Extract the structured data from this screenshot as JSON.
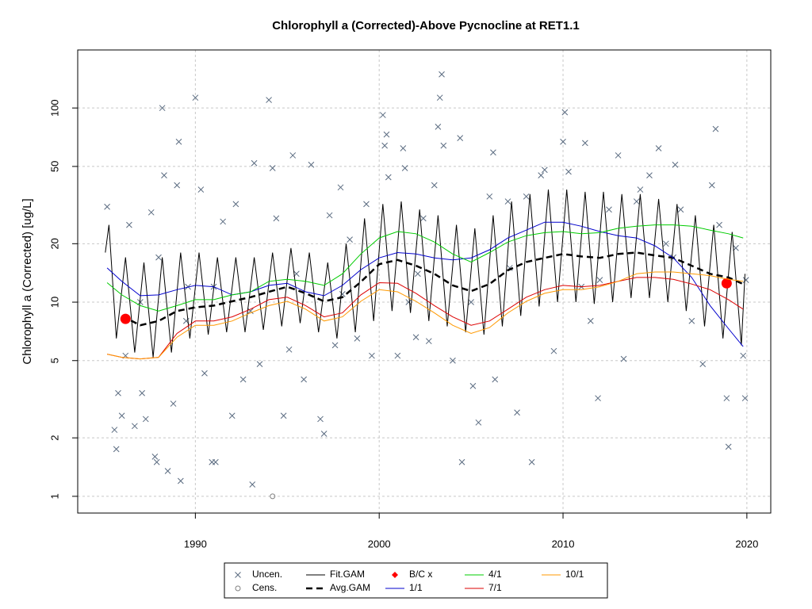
{
  "chart_data": {
    "type": "line",
    "title": "Chlorophyll a (Corrected)-Above Pycnocline at RET1.1",
    "ylabel": "Chlorophyll a (Corrected) [ug/L]",
    "ylog": true,
    "grid": true,
    "legend": "bottom",
    "xlim": [
      1983.6,
      2021.3
    ],
    "ylim": [
      0.82,
      199
    ],
    "xticks": [
      1990,
      2000,
      2010,
      2020
    ],
    "yticks": [
      1,
      2,
      5,
      10,
      20,
      50,
      100
    ],
    "series": [
      {
        "name": "Uncen.",
        "color": "#5a6b80",
        "kind": "points",
        "marker": "x",
        "x": [
          1985.2,
          1985.6,
          1985.7,
          1985.8,
          1986.0,
          1986.2,
          1986.4,
          1986.7,
          1987.0,
          1987.1,
          1987.3,
          1987.6,
          1987.8,
          1987.9,
          1988.0,
          1988.2,
          1988.3,
          1988.5,
          1988.8,
          1989.0,
          1989.1,
          1989.2,
          1989.5,
          1989.6,
          1990.0,
          1990.3,
          1990.5,
          1990.9,
          1991.0,
          1991.1,
          1991.5,
          1992.0,
          1992.2,
          1992.6,
          1993.0,
          1993.1,
          1993.2,
          1993.5,
          1994.0,
          1994.2,
          1994.4,
          1994.8,
          1995.1,
          1995.3,
          1995.5,
          1995.9,
          1996.3,
          1996.8,
          1997.0,
          1997.3,
          1997.6,
          1997.9,
          1998.0,
          1998.4,
          1998.8,
          1999.3,
          1999.6,
          2000.2,
          2000.3,
          2000.4,
          2000.5,
          2001.0,
          2001.3,
          2001.4,
          2001.6,
          2002.0,
          2002.1,
          2002.4,
          2002.7,
          2003.0,
          2003.2,
          2003.3,
          2003.4,
          2003.5,
          2004.0,
          2004.4,
          2004.5,
          2005.0,
          2005.1,
          2005.4,
          2006.0,
          2006.2,
          2006.3,
          2007.0,
          2007.1,
          2007.5,
          2008.0,
          2008.3,
          2008.8,
          2009.0,
          2009.5,
          2010.0,
          2010.1,
          2010.3,
          2011.0,
          2011.2,
          2011.5,
          2011.9,
          2012.0,
          2012.5,
          2013.0,
          2013.3,
          2014.0,
          2014.2,
          2014.7,
          2015.2,
          2015.6,
          2016.0,
          2016.1,
          2016.4,
          2017.0,
          2017.6,
          2018.1,
          2018.3,
          2018.5,
          2018.9,
          2019.0,
          2019.4,
          2019.8,
          2019.9,
          2019.95
        ],
        "values": [
          31,
          2.2,
          1.75,
          3.4,
          2.6,
          5.3,
          25,
          2.3,
          10,
          3.4,
          2.5,
          29,
          1.6,
          1.5,
          17,
          100,
          45,
          1.35,
          3.0,
          40,
          67,
          1.2,
          8,
          12,
          113,
          38,
          4.3,
          1.5,
          12,
          1.5,
          26,
          2.6,
          32,
          4.0,
          9,
          1.15,
          52,
          4.8,
          110,
          49,
          27,
          2.6,
          5.7,
          57,
          14,
          4.0,
          51,
          2.5,
          2.1,
          28,
          6.0,
          39,
          11,
          21,
          6.5,
          32,
          5.3,
          92,
          64,
          73,
          44,
          5.3,
          62,
          49,
          10,
          6.6,
          14,
          27,
          6.3,
          40,
          80,
          113,
          149,
          64,
          5.0,
          70,
          1.5,
          10,
          3.7,
          2.4,
          35,
          59,
          4.0,
          33,
          15,
          2.7,
          35,
          1.5,
          45,
          48,
          5.6,
          67,
          95,
          47,
          12,
          66,
          8,
          3.2,
          13,
          30,
          57,
          5.1,
          33,
          38,
          45,
          62,
          20,
          17,
          51,
          30,
          8.0,
          4.8,
          40,
          78,
          25,
          3.2,
          1.8,
          19,
          5.3,
          3.2,
          13
        ]
      },
      {
        "name": "Cens.",
        "color": "#808080",
        "kind": "points",
        "marker": "o",
        "x": [
          1994.2
        ],
        "values": [
          1.0
        ]
      },
      {
        "name": "Fit.GAM",
        "color": "#000000",
        "kind": "line",
        "width": 1,
        "x": [
          1985.1,
          1985.3,
          1985.7,
          1986.2,
          1986.7,
          1987.2,
          1987.7,
          1988.2,
          1988.7,
          1989.2,
          1989.7,
          1990.2,
          1990.7,
          1991.2,
          1991.7,
          1992.2,
          1992.7,
          1993.2,
          1993.7,
          1994.2,
          1994.7,
          1995.2,
          1995.7,
          1996.2,
          1996.7,
          1997.2,
          1997.7,
          1998.2,
          1998.7,
          1999.2,
          1999.7,
          2000.2,
          2000.7,
          2001.2,
          2001.7,
          2002.2,
          2002.7,
          2003.2,
          2003.7,
          2004.2,
          2004.7,
          2005.2,
          2005.7,
          2006.2,
          2006.7,
          2007.2,
          2007.7,
          2008.2,
          2008.7,
          2009.2,
          2009.7,
          2010.2,
          2010.7,
          2011.2,
          2011.7,
          2012.2,
          2012.7,
          2013.2,
          2013.7,
          2014.2,
          2014.7,
          2015.2,
          2015.7,
          2016.2,
          2016.7,
          2017.2,
          2017.7,
          2018.2,
          2018.7,
          2019.2,
          2019.7,
          2019.9
        ],
        "values": [
          18,
          25,
          6.5,
          17,
          5.5,
          16,
          5.2,
          17,
          5.5,
          18,
          6.5,
          18,
          6.8,
          17,
          7.0,
          17,
          7.0,
          17,
          7.2,
          18,
          7.5,
          19,
          7.8,
          18,
          7.0,
          16,
          6.5,
          20,
          7.0,
          27,
          8.0,
          32,
          9.0,
          33,
          8.8,
          30,
          8.0,
          28,
          7.5,
          25,
          7.0,
          24,
          6.8,
          28,
          7.5,
          33,
          8.5,
          36,
          9.5,
          38,
          10.0,
          38,
          10.0,
          37,
          9.8,
          37,
          10.0,
          36,
          10.5,
          36,
          10.5,
          34,
          10.0,
          32,
          9.0,
          28,
          7.5,
          25,
          6.5,
          23,
          6.0,
          14
        ]
      },
      {
        "name": "Avg.GAM",
        "color": "#000000",
        "kind": "line",
        "width": 2.5,
        "dash": "8 5",
        "x": [
          1986,
          1987,
          1988,
          1989,
          1990,
          1991,
          1992,
          1993,
          1994,
          1995,
          1996,
          1997,
          1998,
          1999,
          2000,
          2001,
          2002,
          2003,
          2004,
          2005,
          2006,
          2007,
          2008,
          2009,
          2010,
          2011,
          2012,
          2013,
          2014,
          2015,
          2016,
          2017,
          2018,
          2019,
          2019.8
        ],
        "values": [
          8.5,
          7.6,
          8.0,
          9.0,
          9.4,
          9.6,
          10.1,
          10.6,
          11.3,
          12.0,
          11.1,
          10.1,
          10.6,
          12.7,
          15.7,
          16.5,
          15.4,
          14.0,
          12.2,
          11.4,
          12.4,
          14.6,
          16.1,
          16.9,
          17.7,
          17.2,
          16.9,
          17.7,
          18.0,
          17.4,
          16.9,
          15.4,
          14.0,
          13.4,
          12.4
        ]
      },
      {
        "name": "B/C x",
        "color": "#ff0000",
        "kind": "points",
        "marker": "dot",
        "x": [
          1986.2,
          2018.9
        ],
        "values": [
          8.2,
          12.5
        ]
      },
      {
        "name": "1/1",
        "color": "#0000cc",
        "kind": "line",
        "width": 1,
        "x": [
          1985.2,
          1986,
          1987,
          1988,
          1989,
          1990,
          1991,
          1992,
          1993,
          1994,
          1995,
          1996,
          1997,
          1998,
          1999,
          2000,
          2001,
          2002,
          2003,
          2004,
          2005,
          2006,
          2007,
          2008,
          2009,
          2010,
          2011,
          2012,
          2013,
          2014,
          2015,
          2016,
          2017,
          2018,
          2019,
          2019.8
        ],
        "values": [
          15,
          12.8,
          10.8,
          10.9,
          11.6,
          12.2,
          12.0,
          10.9,
          11.3,
          12.2,
          12.5,
          11.3,
          10.8,
          12.2,
          14.7,
          16.9,
          18.0,
          17.7,
          16.9,
          16.5,
          16.9,
          18.6,
          21.4,
          23.5,
          25.8,
          25.8,
          24.6,
          23.1,
          22.0,
          21.4,
          19.5,
          16.9,
          13.4,
          9.6,
          7.3,
          5.9
        ]
      },
      {
        "name": "4/1",
        "color": "#00cc00",
        "kind": "line",
        "width": 1,
        "x": [
          1985.2,
          1986,
          1987,
          1988,
          1989,
          1990,
          1991,
          1992,
          1993,
          1994,
          1995,
          1996,
          1997,
          1998,
          1999,
          2000,
          2001,
          2002,
          2003,
          2004,
          2005,
          2006,
          2007,
          2008,
          2009,
          2010,
          2011,
          2012,
          2013,
          2014,
          2015,
          2016,
          2017,
          2018,
          2019,
          2019.8
        ],
        "values": [
          12.6,
          10.9,
          9.6,
          9.0,
          9.6,
          10.3,
          10.3,
          10.9,
          11.3,
          12.8,
          13.1,
          12.8,
          12.2,
          14.0,
          17.7,
          21.4,
          23.1,
          22.5,
          20.4,
          17.7,
          16.1,
          18.0,
          20.4,
          22.0,
          22.8,
          23.1,
          22.5,
          22.8,
          24.0,
          24.6,
          25.0,
          25.0,
          24.6,
          23.5,
          22.5,
          21.4
        ]
      },
      {
        "name": "7/1",
        "color": "#dd0000",
        "kind": "line",
        "width": 1,
        "x": [
          1985.2,
          1986,
          1987,
          1988,
          1989,
          1990,
          1991,
          1992,
          1993,
          1994,
          1995,
          1996,
          1997,
          1998,
          1999,
          2000,
          2001,
          2002,
          2003,
          2004,
          2005,
          2006,
          2007,
          2008,
          2009,
          2010,
          2011,
          2012,
          2013,
          2014,
          2015,
          2016,
          2017,
          2018,
          2019,
          2019.8
        ],
        "values": [
          5.4,
          5.2,
          5.1,
          5.2,
          6.9,
          8.0,
          8.0,
          8.4,
          9.2,
          10.3,
          10.6,
          9.6,
          8.4,
          8.8,
          10.9,
          12.6,
          12.5,
          11.1,
          9.6,
          8.4,
          7.6,
          8.0,
          9.2,
          10.6,
          11.6,
          12.2,
          12.0,
          12.2,
          12.8,
          13.4,
          13.4,
          13.1,
          12.4,
          11.6,
          10.3,
          9.2
        ]
      },
      {
        "name": "10/1",
        "color": "#ff9900",
        "kind": "line",
        "width": 1,
        "x": [
          1985.2,
          1986,
          1987,
          1988,
          1989,
          1990,
          1991,
          1992,
          1993,
          1994,
          1995,
          1996,
          1997,
          1998,
          1999,
          2000,
          2001,
          2002,
          2003,
          2004,
          2005,
          2006,
          2007,
          2008,
          2009,
          2010,
          2011,
          2012,
          2013,
          2014,
          2015,
          2016,
          2017,
          2018,
          2019,
          2019.8
        ],
        "values": [
          5.4,
          5.2,
          5.1,
          5.2,
          6.6,
          7.6,
          7.6,
          8.0,
          8.8,
          9.6,
          10.1,
          9.2,
          8.0,
          8.4,
          10.1,
          11.6,
          11.3,
          10.1,
          8.8,
          7.6,
          6.9,
          7.4,
          8.8,
          10.1,
          11.1,
          11.6,
          11.6,
          12.0,
          12.8,
          14.0,
          14.3,
          14.3,
          14.0,
          13.7,
          13.1,
          12.8
        ]
      }
    ]
  }
}
